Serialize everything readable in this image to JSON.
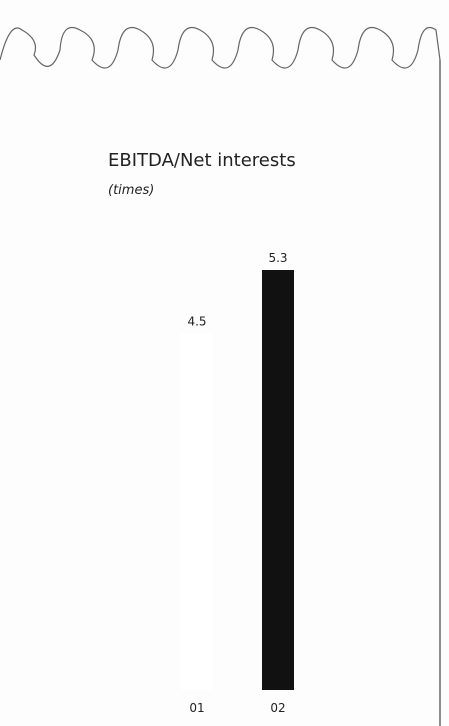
{
  "chart_data": {
    "type": "bar",
    "title": "EBITDA/Net interests",
    "subtitle": "(times)",
    "categories": [
      "01",
      "02"
    ],
    "values": [
      4.5,
      5.3
    ],
    "colors": [
      "#ffffff",
      "#111111"
    ],
    "ylim": [
      0,
      5.3
    ]
  }
}
